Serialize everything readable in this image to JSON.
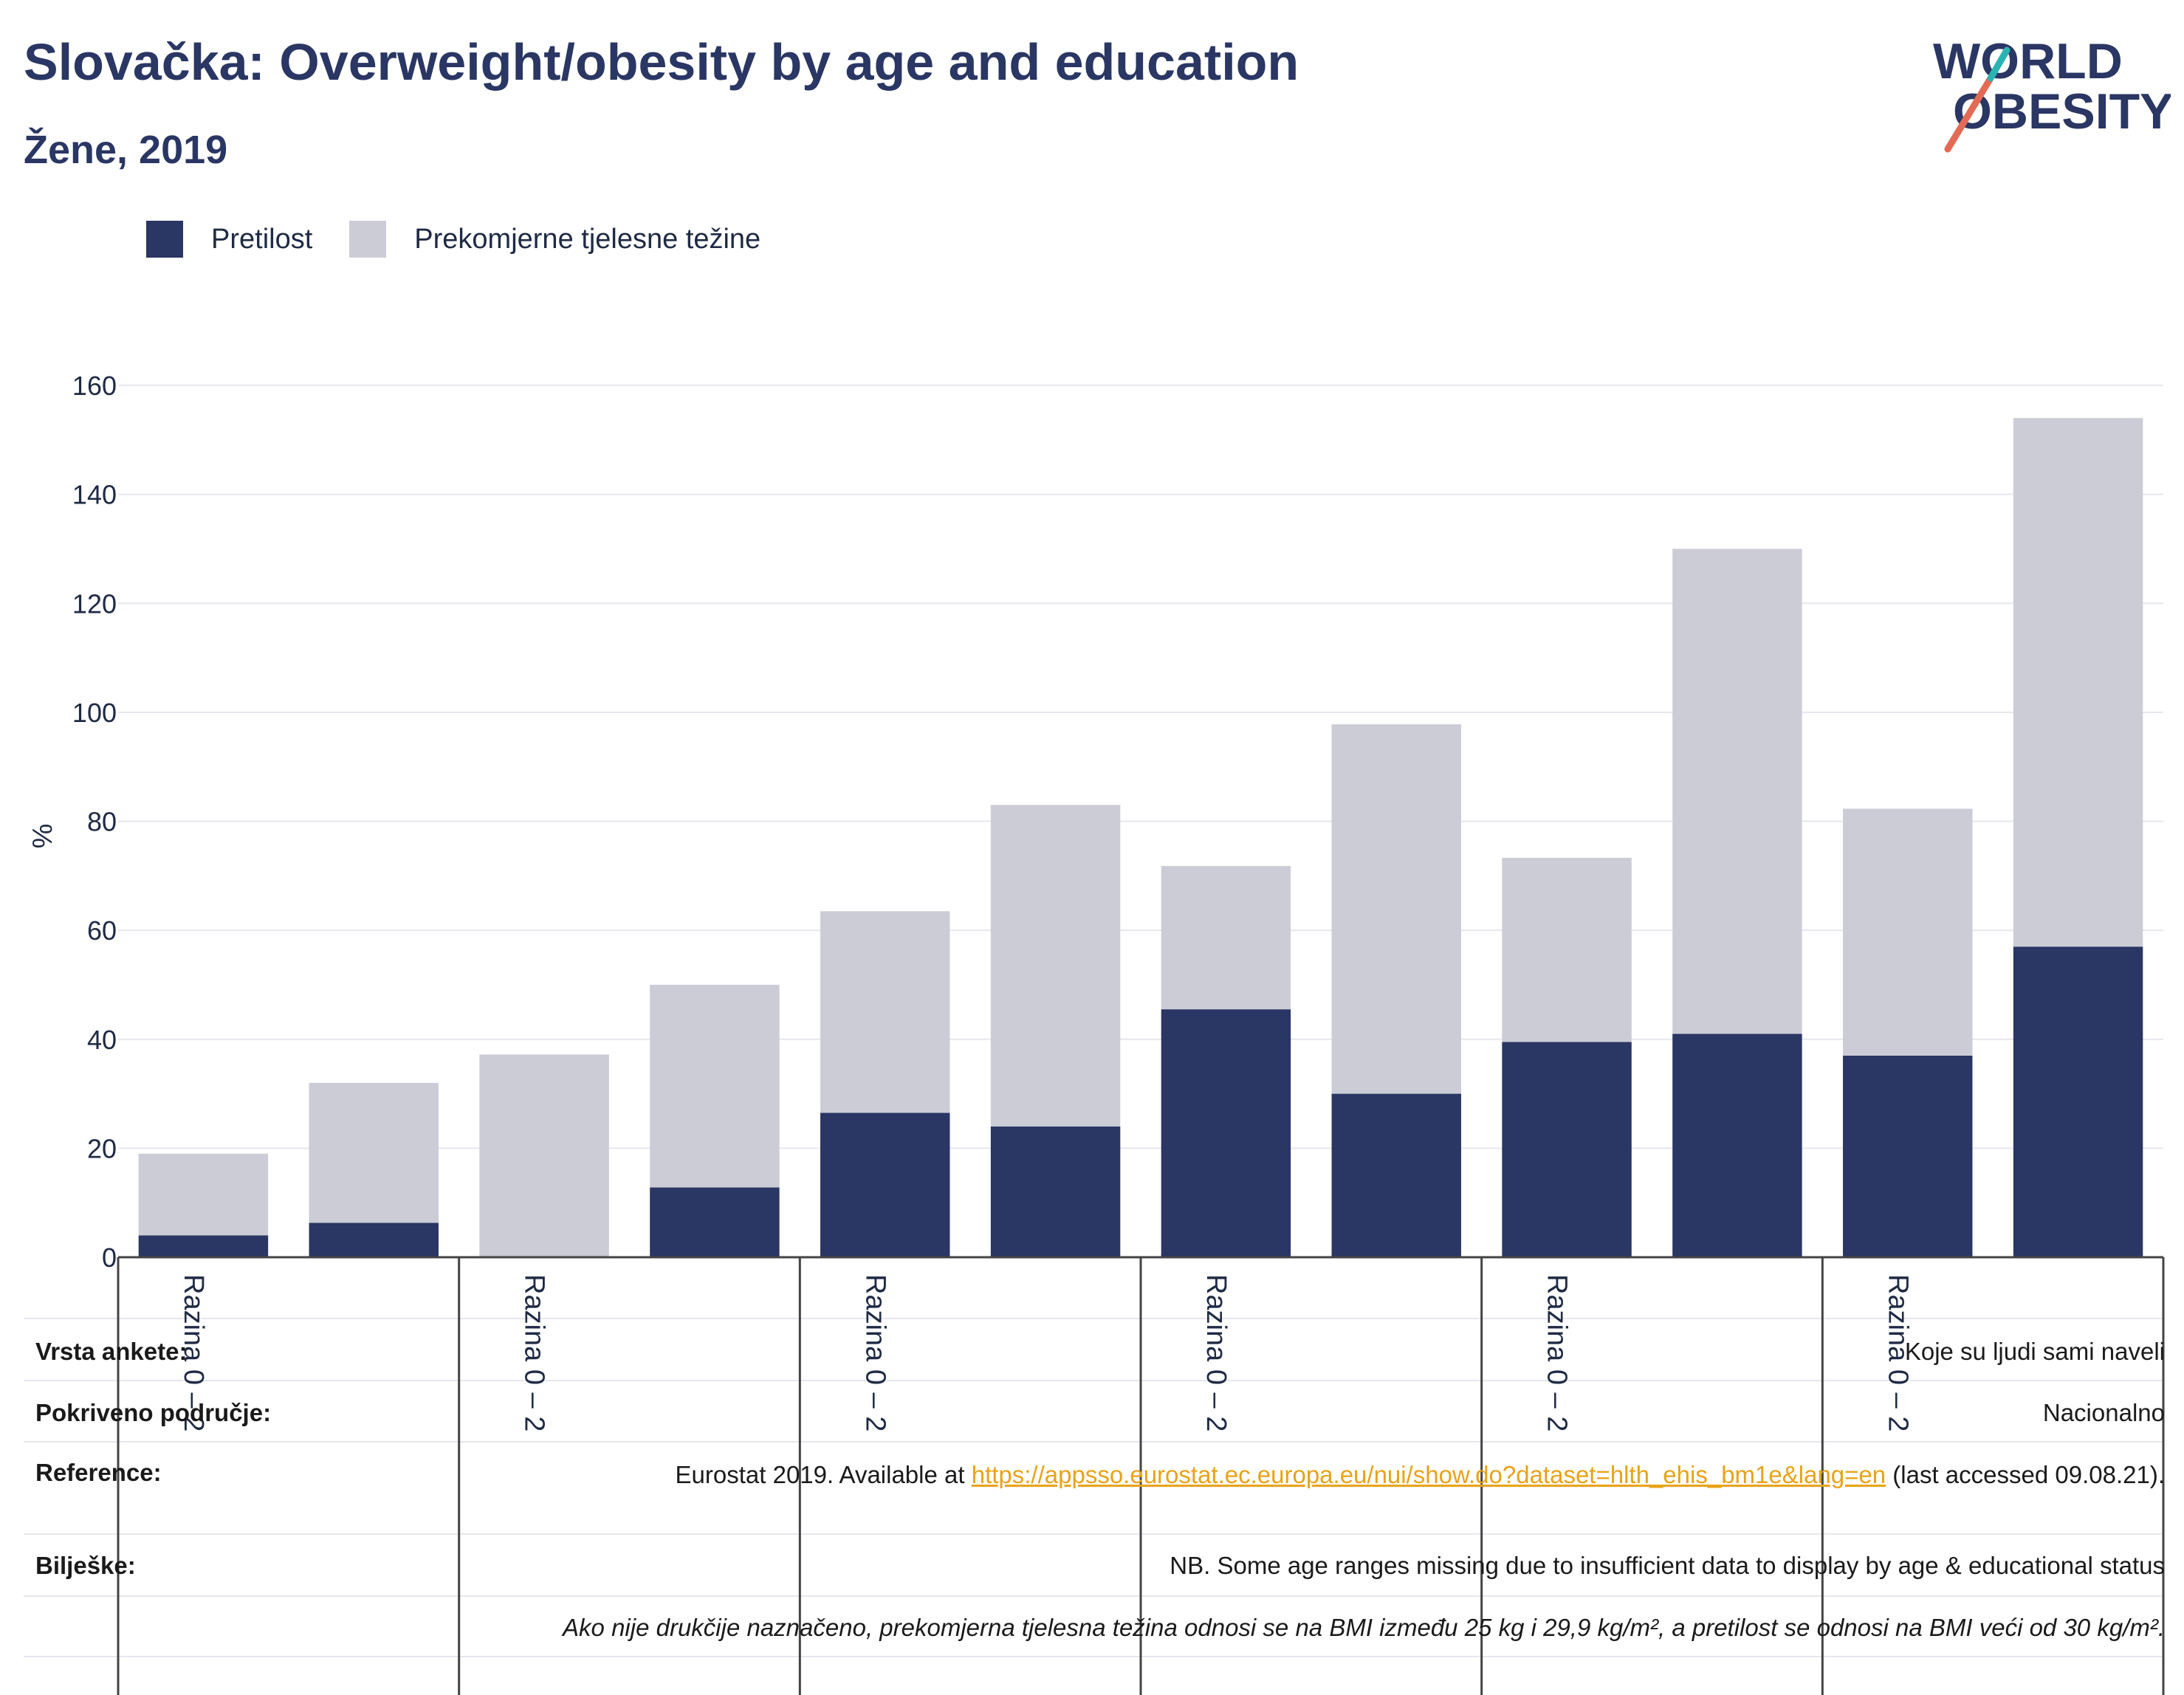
{
  "title": "Slovačka: Overweight/obesity by age and education",
  "subtitle": "Žene, 2019",
  "logo": {
    "line1": "WORLD",
    "line2": "OBESITY"
  },
  "colors": {
    "obesity": "#2a3663",
    "overweight": "#cbccd6",
    "link": "#e8a317",
    "title": "#2a3663"
  },
  "legend": [
    {
      "label": "Pretilost",
      "color": "#2a3663"
    },
    {
      "label": "Prekomjerne tjelesne težine",
      "color": "#cbccd6"
    }
  ],
  "chart_data": {
    "type": "bar",
    "stacked": true,
    "ylabel": "%",
    "ylim": [
      0,
      160
    ],
    "yticks": [
      0,
      20,
      40,
      60,
      80,
      100,
      120,
      140,
      160
    ],
    "grid": true,
    "legend_position": "top-left",
    "group_labels": [
      "Razina 0 – 2",
      "Razina 0 – 2",
      "Razina 0 – 2",
      "Razina 0 – 2",
      "Razina 0 – 2",
      "Razina 0 – 2"
    ],
    "series": [
      {
        "name": "Pretilost",
        "values": [
          4,
          6.3,
          0,
          12.8,
          26.5,
          24,
          45.5,
          30,
          39.5,
          41,
          37,
          57
        ]
      },
      {
        "name": "Prekomjerne tjelesne težine",
        "values": [
          15,
          25.7,
          37.2,
          37.2,
          37,
          59,
          26.3,
          67.8,
          33.8,
          89,
          45.3,
          97
        ]
      }
    ]
  },
  "info": {
    "survey_type_label": "Vrsta ankete:",
    "survey_type_value": "Koje su ljudi sami naveli",
    "coverage_label": "Pokriveno područje:",
    "coverage_value": "Nacionalno",
    "reference_label": "Reference:",
    "reference_prefix": "Eurostat 2019. Available at ",
    "reference_link": "https://appsso.eurostat.ec.europa.eu/nui/show.do?dataset=hlth_ehis_bm1e&lang=en",
    "reference_suffix": " (last accessed 09.08.21).",
    "notes_label": "Bilješke:",
    "notes_value": "NB. Some age ranges missing due to insufficient data to display by age & educational status",
    "definition": "Ako nije drukčije naznačeno, prekomjerna tjelesna težina odnosi se na BMI između 25 kg i 29,9 kg/m², a pretilost se odnosi na BMI veći od 30 kg/m²."
  }
}
